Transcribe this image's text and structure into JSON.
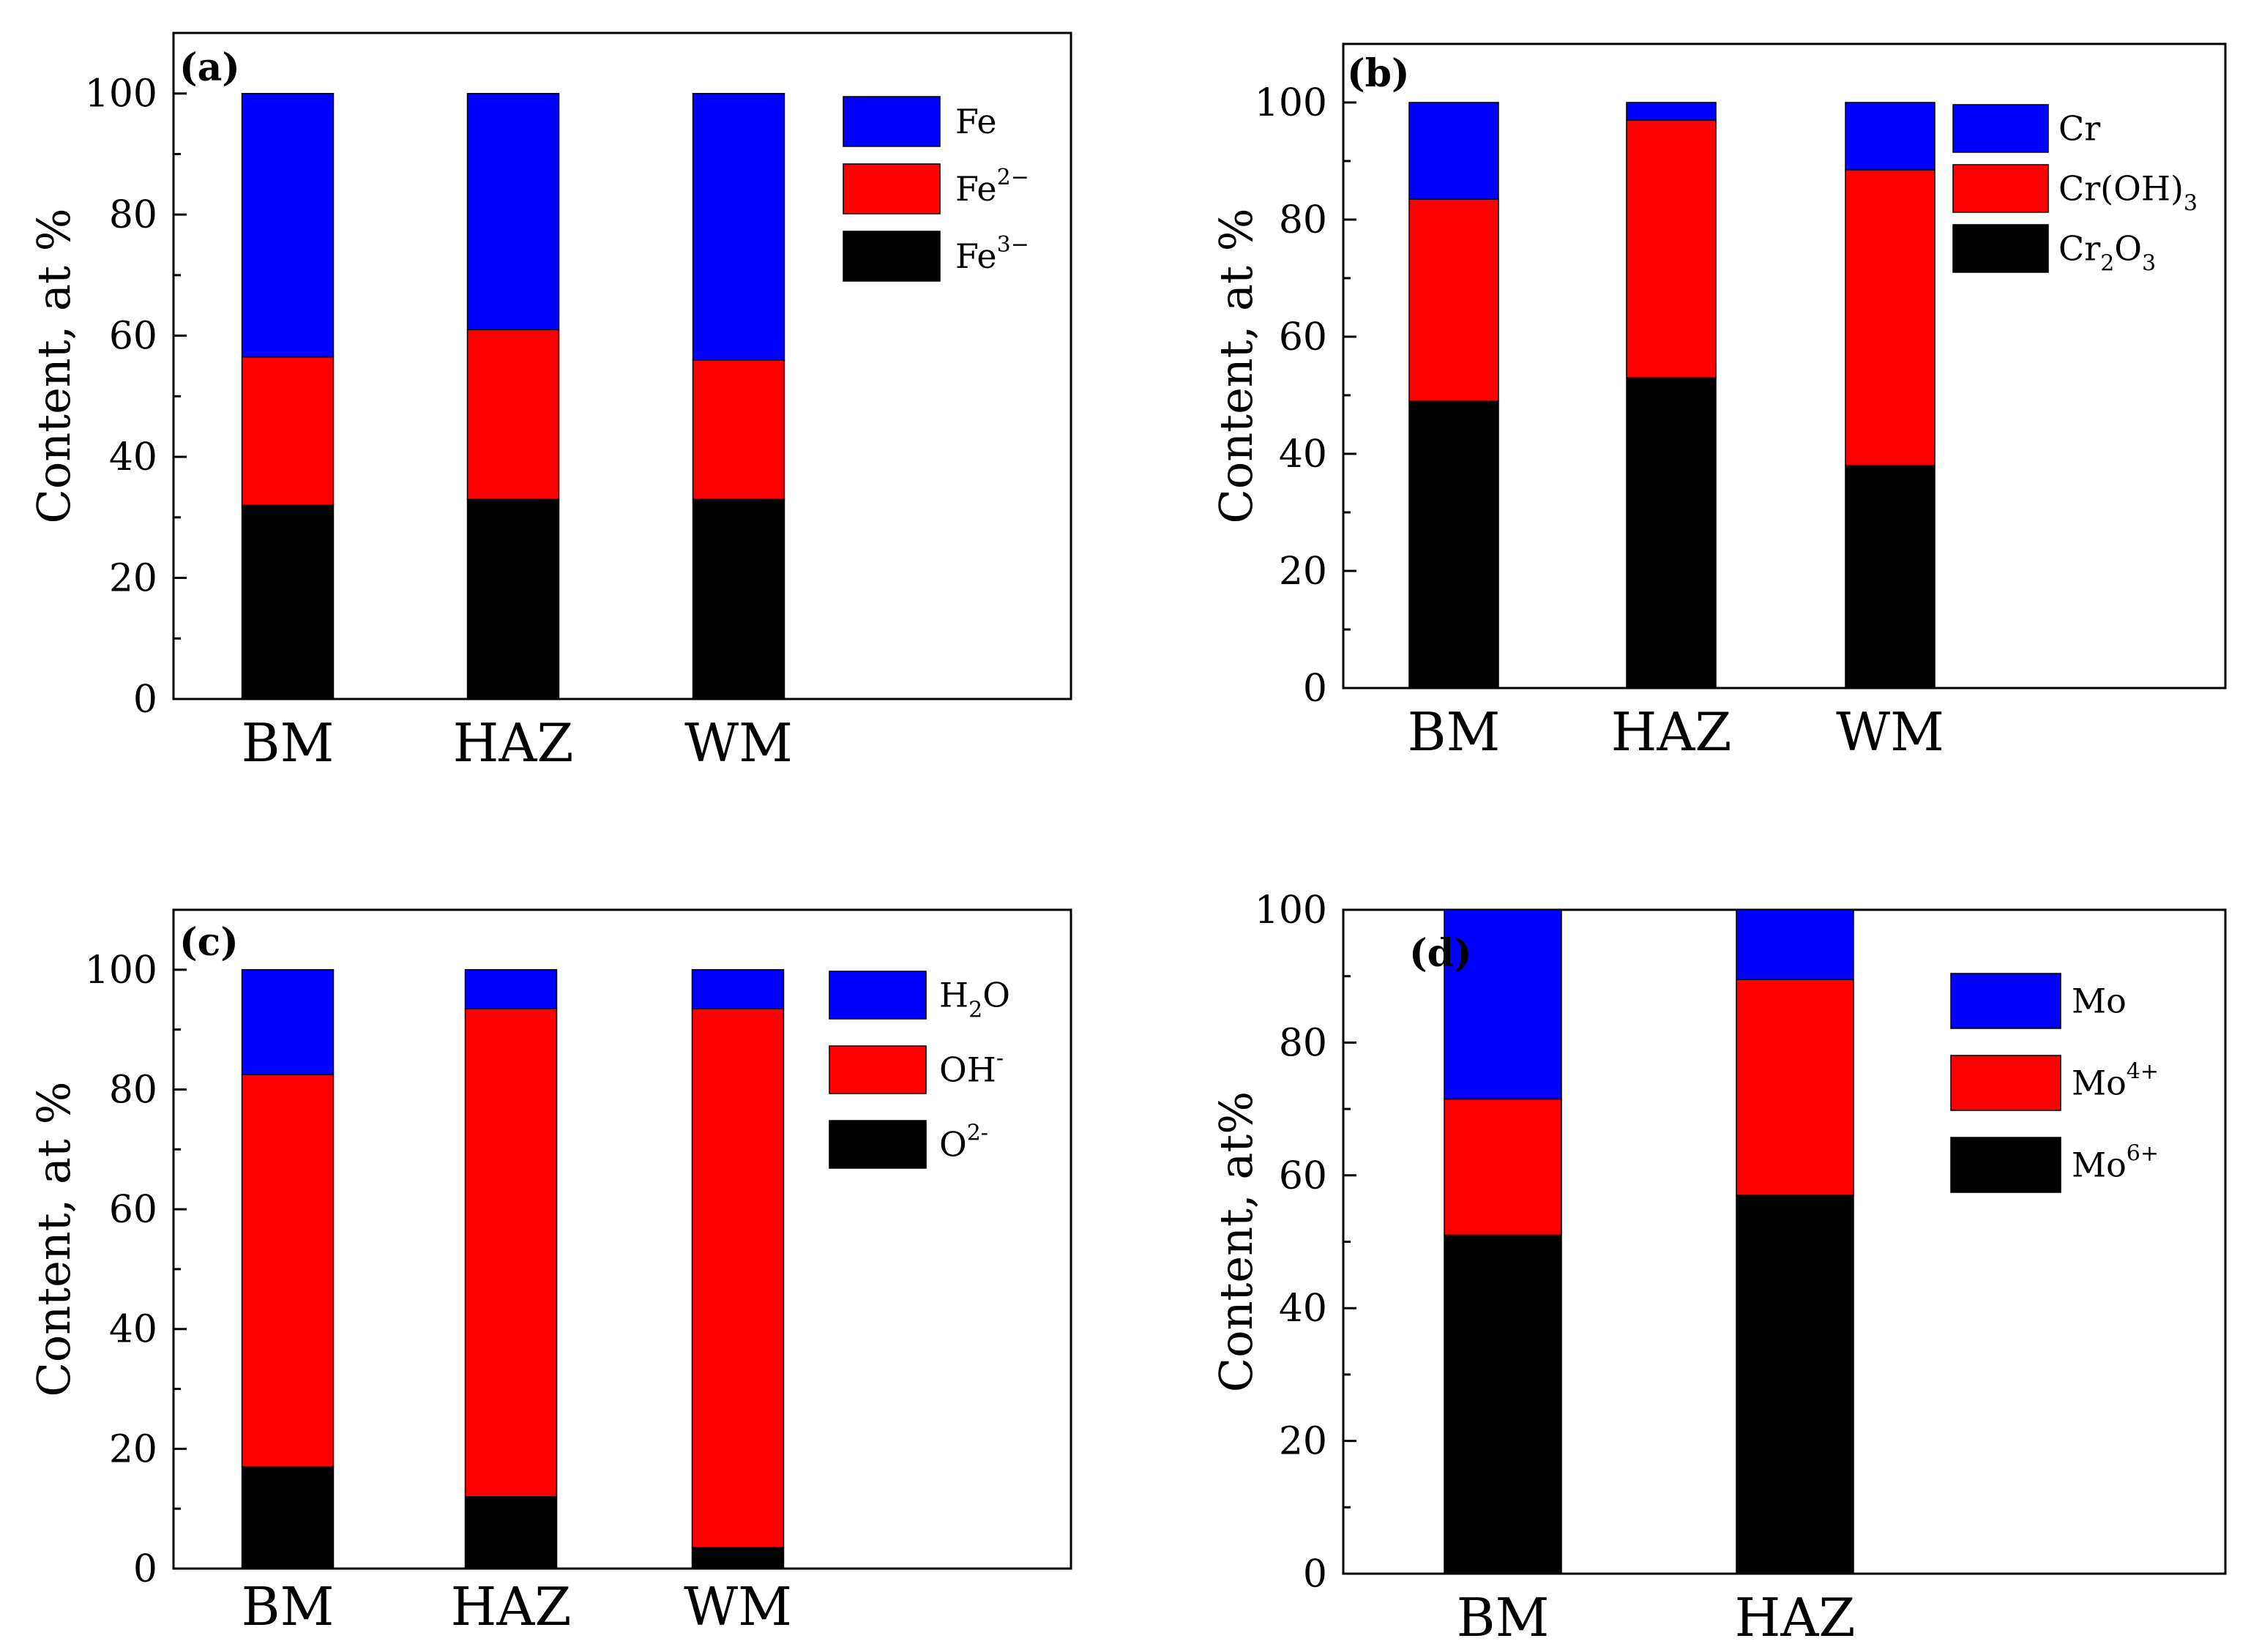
{
  "chart_data": [
    {
      "type": "bar",
      "stacked": true,
      "panel_label": "(a)",
      "ylabel": "Content, at %",
      "xlabel": "",
      "ylim": [
        0,
        110
      ],
      "yticks": [
        0,
        20,
        40,
        60,
        80,
        100
      ],
      "categories": [
        "BM",
        "HAZ",
        "WM"
      ],
      "series": [
        {
          "name": "Fe3-",
          "legend_base": "Fe",
          "legend_sup": "3−",
          "legend_sub": "",
          "color": "#000000",
          "values": [
            32,
            33,
            33
          ]
        },
        {
          "name": "Fe2-",
          "legend_base": "Fe",
          "legend_sup": "2−",
          "legend_sub": "",
          "color": "#ff0000",
          "values": [
            24.5,
            28,
            23
          ]
        },
        {
          "name": "Fe",
          "legend_base": "Fe",
          "legend_sup": "",
          "legend_sub": "",
          "color": "#0000ff",
          "values": [
            43.5,
            39,
            44
          ]
        }
      ],
      "legend_order": [
        "Fe",
        "Fe2-",
        "Fe3-"
      ],
      "legend_position": "top-right"
    },
    {
      "type": "bar",
      "stacked": true,
      "panel_label": "(b)",
      "ylabel": "Content, at %",
      "xlabel": "",
      "ylim": [
        0,
        110
      ],
      "yticks": [
        0,
        20,
        40,
        60,
        80,
        100
      ],
      "categories": [
        "BM",
        "HAZ",
        "WM"
      ],
      "series": [
        {
          "name": "Cr2O3",
          "legend_base": "Cr",
          "legend_sub": "2",
          "legend_base2": "O",
          "legend_sub2": "3",
          "legend_sup": "",
          "color": "#000000",
          "values": [
            49,
            53,
            38
          ]
        },
        {
          "name": "Cr(OH)3",
          "legend_base": "Cr(OH)",
          "legend_sub": "3",
          "legend_sup": "",
          "color": "#ff0000",
          "values": [
            34.5,
            44,
            50.5
          ]
        },
        {
          "name": "Cr",
          "legend_base": "Cr",
          "legend_sup": "",
          "legend_sub": "",
          "color": "#0000ff",
          "values": [
            16.5,
            3,
            11.5
          ]
        }
      ],
      "legend_order": [
        "Cr",
        "Cr(OH)3",
        "Cr2O3"
      ],
      "legend_position": "top-right"
    },
    {
      "type": "bar",
      "stacked": true,
      "panel_label": "(c)",
      "ylabel": "Content, at %",
      "xlabel": "",
      "ylim": [
        0,
        110
      ],
      "yticks": [
        0,
        20,
        40,
        60,
        80,
        100
      ],
      "categories": [
        "BM",
        "HAZ",
        "WM"
      ],
      "series": [
        {
          "name": "O2-",
          "legend_base": "O",
          "legend_sup": "2-",
          "legend_sub": "",
          "color": "#000000",
          "values": [
            17,
            12,
            3.5
          ]
        },
        {
          "name": "OH-",
          "legend_base": "OH",
          "legend_sup": "-",
          "legend_sub": "",
          "color": "#ff0000",
          "values": [
            65.5,
            81.5,
            90
          ]
        },
        {
          "name": "H2O",
          "legend_base": "H",
          "legend_sub": "2",
          "legend_base2": "O",
          "legend_sub2": "",
          "legend_sup": "",
          "color": "#0000ff",
          "values": [
            17.5,
            6.5,
            6.5
          ]
        }
      ],
      "legend_order": [
        "H2O",
        "OH-",
        "O2-"
      ],
      "legend_position": "top-right"
    },
    {
      "type": "bar",
      "stacked": true,
      "panel_label": "(d)",
      "ylabel": "Content, at%",
      "xlabel": "",
      "ylim": [
        0,
        100
      ],
      "yticks": [
        0,
        20,
        40,
        60,
        80,
        100
      ],
      "categories": [
        "BM",
        "HAZ"
      ],
      "series": [
        {
          "name": "Mo6+",
          "legend_base": "Mo",
          "legend_sup": "6+",
          "legend_sub": "",
          "color": "#000000",
          "values": [
            51,
            57
          ]
        },
        {
          "name": "Mo4+",
          "legend_base": "Mo",
          "legend_sup": "4+",
          "legend_sub": "",
          "color": "#ff0000",
          "values": [
            20.5,
            32.5
          ]
        },
        {
          "name": "Mo",
          "legend_base": "Mo",
          "legend_sup": "",
          "legend_sub": "",
          "color": "#0000ff",
          "values": [
            28.5,
            10.5
          ]
        }
      ],
      "legend_order": [
        "Mo",
        "Mo4+",
        "Mo6+"
      ],
      "legend_position": "top-right"
    }
  ]
}
